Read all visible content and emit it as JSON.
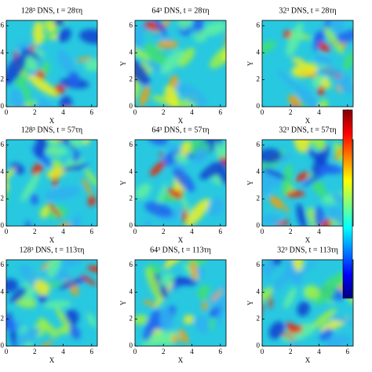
{
  "chart_data": [
    {
      "type": "heatmap",
      "title": "128³ DNS, t = 28τη",
      "xlabel": "X",
      "xlim": [
        0,
        6.4
      ],
      "ylim": [
        0,
        6.4
      ],
      "xticks": [
        0,
        2,
        4,
        6
      ],
      "yticks": [
        0,
        2,
        4,
        6
      ]
    },
    {
      "type": "heatmap",
      "title": "64³ DNS, t = 28τη",
      "xlabel": "X",
      "ylabel": "Y",
      "xlim": [
        0,
        6.4
      ],
      "ylim": [
        0,
        6.4
      ],
      "xticks": [
        0,
        2,
        4,
        6
      ],
      "yticks": [
        0,
        2,
        4,
        6
      ]
    },
    {
      "type": "heatmap",
      "title": "32³ DNS, t = 28τη",
      "xlabel": "X",
      "ylabel": "Y",
      "xlim": [
        0,
        6.4
      ],
      "ylim": [
        0,
        6.4
      ],
      "xticks": [
        0,
        2,
        4,
        6
      ],
      "yticks": [
        0,
        2,
        4,
        6
      ]
    },
    {
      "type": "heatmap",
      "title": "128³ DNS, t = 57τη",
      "xlabel": "X",
      "xlim": [
        0,
        6.4
      ],
      "ylim": [
        0,
        6.4
      ],
      "xticks": [
        0,
        2,
        4,
        6
      ],
      "yticks": [
        0,
        2,
        4,
        6
      ]
    },
    {
      "type": "heatmap",
      "title": "64³ DNS, t = 57τη",
      "xlabel": "X",
      "ylabel": "Y",
      "xlim": [
        0,
        6.4
      ],
      "ylim": [
        0,
        6.4
      ],
      "xticks": [
        0,
        2,
        4,
        6
      ],
      "yticks": [
        0,
        2,
        4,
        6
      ]
    },
    {
      "type": "heatmap",
      "title": "32³ DNS, t = 57τη",
      "xlabel": "X",
      "ylabel": "Y",
      "xlim": [
        0,
        6.4
      ],
      "ylim": [
        0,
        6.4
      ],
      "xticks": [
        0,
        2,
        4,
        6
      ],
      "yticks": [
        0,
        2,
        4,
        6
      ]
    },
    {
      "type": "heatmap",
      "title": "128³ DNS, t = 113τη",
      "xlabel": "X",
      "xlim": [
        0,
        6.4
      ],
      "ylim": [
        0,
        6.4
      ],
      "xticks": [
        0,
        2,
        4,
        6
      ],
      "yticks": [
        0,
        2,
        4,
        6
      ]
    },
    {
      "type": "heatmap",
      "title": "64³ DNS, t = 113τη",
      "xlabel": "X",
      "ylabel": "Y",
      "xlim": [
        0,
        6.4
      ],
      "ylim": [
        0,
        6.4
      ],
      "xticks": [
        0,
        2,
        4,
        6
      ],
      "yticks": [
        0,
        2,
        4,
        6
      ]
    },
    {
      "type": "heatmap",
      "title": "32³ DNS, t = 113τη",
      "xlabel": "X",
      "ylabel": "Y",
      "xlim": [
        0,
        6.4
      ],
      "ylim": [
        0,
        6.4
      ],
      "xticks": [
        0,
        2,
        4,
        6
      ],
      "yticks": [
        0,
        2,
        4,
        6
      ]
    }
  ],
  "colorbar": {
    "colormap": "jet"
  }
}
